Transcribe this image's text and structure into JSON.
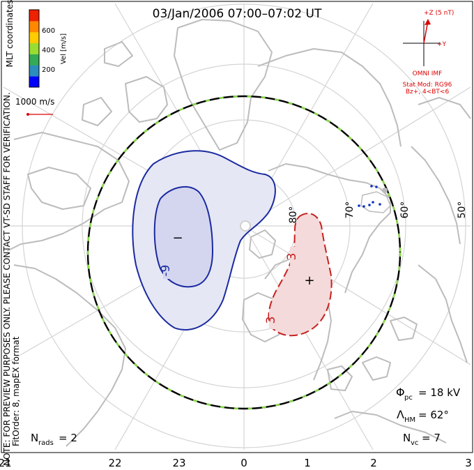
{
  "title": "03/Jan/2006 07:00–07:02 UT",
  "coordinates_label": "MLT coordinates",
  "note": "NOTE: FOR PREVIEW PURPOSES ONLY. PLEASE CONTACT VT-SD STAFF FOR VERIFICATION.",
  "fit_info": "FitOrder: 8,  mapEX format",
  "velocity_scale": {
    "label": "Vel [m/s]",
    "ticks": [
      "200",
      "400",
      "600"
    ],
    "colors": [
      "#0000ff",
      "#2b8cbe",
      "#33aa55",
      "#99dd33",
      "#ffcc00",
      "#ff8800",
      "#ee2200"
    ]
  },
  "reference_vector": "1000 m/s",
  "imf": {
    "z_label": "+Z (5 nT)",
    "y_label": "+Y",
    "source": "OMNI IMF",
    "stat_model": "Stat Mod: RG96",
    "condition": "Bz+, 4<BT<6"
  },
  "latitude_labels": [
    "80°",
    "70°",
    "60°",
    "50°"
  ],
  "mlt_labels": [
    "21",
    "22",
    "23",
    "0",
    "1",
    "2",
    "3"
  ],
  "contours": {
    "negative_label": "-9",
    "positive_label_a": "3",
    "positive_label_b": "3",
    "min_marker": "−",
    "max_marker": "+"
  },
  "stats": {
    "phi_pc_symbol": "Φ",
    "phi_pc_sub": "pc",
    "phi_pc_value": "= 18 kV",
    "lambda_hm_symbol": "Λ",
    "lambda_hm_sub": "HM",
    "lambda_hm_value": "= 62°",
    "n_rads_symbol": "N",
    "n_rads_sub": "rads",
    "n_rads_value": "= 2",
    "n_vc_symbol": "N",
    "n_vc_sub": "vc",
    "n_vc_value": "= 7"
  },
  "colors": {
    "negative_cell": "#1a2aa0",
    "negative_fill": "#e6e7f4",
    "negative_inner_fill": "#d4d6ef",
    "positive_cell": "#c82020",
    "positive_fill": "#f4dada",
    "coastline": "#bbbbbb",
    "grid": "#d0d0d0",
    "hm_boundary_dash": "#88dd44",
    "imf_red": "#dd0000",
    "vector_dots": "#1030c0"
  }
}
